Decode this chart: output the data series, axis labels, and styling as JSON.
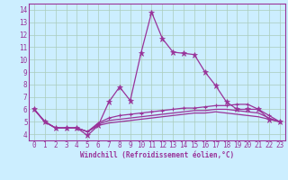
{
  "xlabel": "Windchill (Refroidissement éolien,°C)",
  "background_color": "#cceeff",
  "grid_color": "#aaccbb",
  "line_color": "#993399",
  "x": [
    0,
    1,
    2,
    3,
    4,
    5,
    6,
    7,
    8,
    9,
    10,
    11,
    12,
    13,
    14,
    15,
    16,
    17,
    18,
    19,
    20,
    21,
    22,
    23
  ],
  "series1": [
    6.0,
    5.0,
    4.5,
    4.5,
    4.5,
    3.9,
    4.7,
    6.6,
    7.8,
    6.7,
    10.5,
    13.8,
    11.7,
    10.6,
    10.5,
    10.4,
    9.0,
    7.9,
    6.6,
    6.0,
    6.0,
    6.0,
    5.2,
    5.0
  ],
  "series2": [
    6.0,
    5.0,
    4.5,
    4.5,
    4.5,
    4.2,
    4.9,
    5.3,
    5.5,
    5.6,
    5.7,
    5.8,
    5.9,
    6.0,
    6.1,
    6.1,
    6.2,
    6.3,
    6.3,
    6.4,
    6.4,
    6.0,
    5.5,
    5.0
  ],
  "series3": [
    6.0,
    5.0,
    4.5,
    4.5,
    4.5,
    4.2,
    4.8,
    5.1,
    5.2,
    5.3,
    5.4,
    5.5,
    5.6,
    5.7,
    5.8,
    5.9,
    5.9,
    6.0,
    6.0,
    5.9,
    5.8,
    5.7,
    5.3,
    5.0
  ],
  "series4": [
    6.0,
    5.0,
    4.5,
    4.5,
    4.5,
    4.2,
    4.7,
    4.9,
    5.0,
    5.1,
    5.2,
    5.3,
    5.4,
    5.5,
    5.6,
    5.7,
    5.7,
    5.8,
    5.7,
    5.6,
    5.5,
    5.4,
    5.2,
    5.0
  ],
  "ylim": [
    3.5,
    14.5
  ],
  "yticks": [
    4,
    5,
    6,
    7,
    8,
    9,
    10,
    11,
    12,
    13,
    14
  ],
  "xlim": [
    -0.5,
    23.5
  ],
  "xlabel_fontsize": 5.5,
  "tick_fontsize": 5.5
}
